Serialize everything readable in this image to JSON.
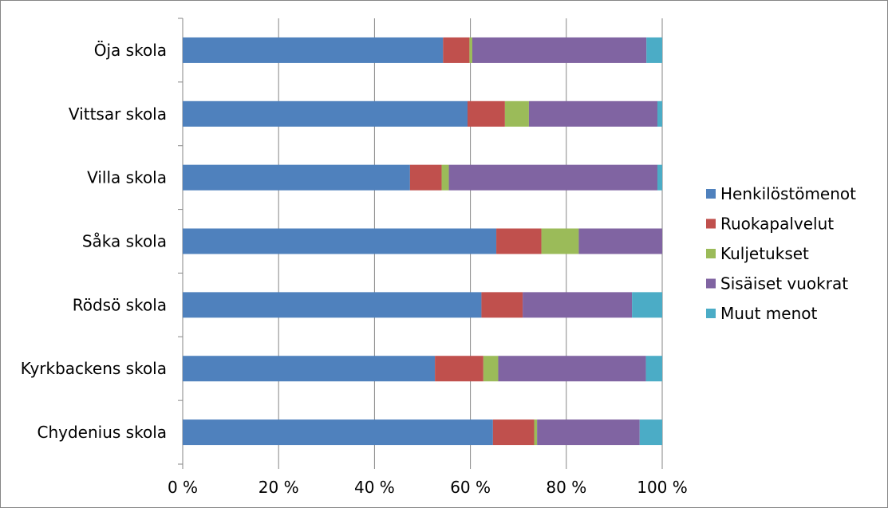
{
  "chart_data": {
    "type": "bar",
    "orientation": "horizontal",
    "stacked": "percent",
    "categories": [
      "Öja skola",
      "Vittsar skola",
      "Villa skola",
      "Såka skola",
      "Rödsö skola",
      "Kyrkbackens skola",
      "Chydenius skola"
    ],
    "series": [
      {
        "name": "Henkilöstömenot",
        "color": "#4F81BD",
        "values": [
          54.3,
          59.4,
          47.4,
          65.4,
          62.3,
          52.6,
          64.7
        ]
      },
      {
        "name": "Ruokapalvelut",
        "color": "#C0504D",
        "values": [
          5.5,
          7.8,
          6.6,
          9.4,
          8.6,
          10.1,
          8.6
        ]
      },
      {
        "name": "Kuljetukset",
        "color": "#9BBB59",
        "values": [
          0.6,
          5.0,
          1.5,
          7.8,
          0,
          3.1,
          0.6
        ]
      },
      {
        "name": "Sisäiset vuokrat",
        "color": "#8064A2",
        "values": [
          36.3,
          26.8,
          43.5,
          17.4,
          22.8,
          30.8,
          21.4
        ]
      },
      {
        "name": "Muut menot",
        "color": "#4BACC6",
        "values": [
          3.3,
          1.0,
          1.0,
          0,
          6.3,
          3.4,
          4.7
        ]
      }
    ],
    "xticks": [
      "0 %",
      "20 %",
      "40 %",
      "60 %",
      "80 %",
      "100 %"
    ],
    "xlim": [
      0,
      100
    ],
    "grid": "vertical",
    "legend_position": "right"
  }
}
